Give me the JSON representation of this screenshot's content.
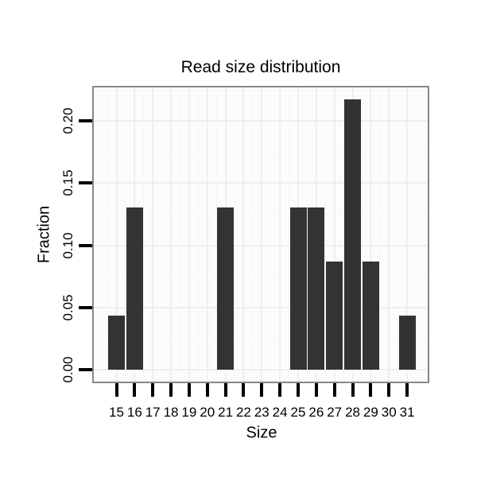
{
  "chart_data": {
    "type": "bar",
    "title": "Read size distribution",
    "xlabel": "Size",
    "ylabel": "Fraction",
    "categories": [
      "15",
      "16",
      "17",
      "18",
      "19",
      "20",
      "21",
      "22",
      "23",
      "24",
      "25",
      "26",
      "27",
      "28",
      "29",
      "30",
      "31"
    ],
    "values": [
      0.0435,
      0.1304,
      0,
      0,
      0,
      0,
      0.1304,
      0,
      0,
      0,
      0.1304,
      0.1304,
      0.087,
      0.2174,
      0.087,
      0,
      0.0435
    ],
    "ytick_labels": [
      "0.00",
      "0.05",
      "0.10",
      "0.15",
      "0.20"
    ],
    "ytick_values": [
      0,
      0.05,
      0.1,
      0.15,
      0.2
    ],
    "ylim": [
      -0.011,
      0.2297
    ],
    "grid": "on",
    "legend": "none",
    "colors": {
      "figure_background": "#FFFFFF",
      "panel_background": "#FCFCFC",
      "panel_border": "#878787",
      "bar_fill": "#333333",
      "grid_major": "#EFEFEF",
      "grid_minor": "#F6F6F6",
      "tick": "#000000",
      "text": "#000000"
    }
  }
}
